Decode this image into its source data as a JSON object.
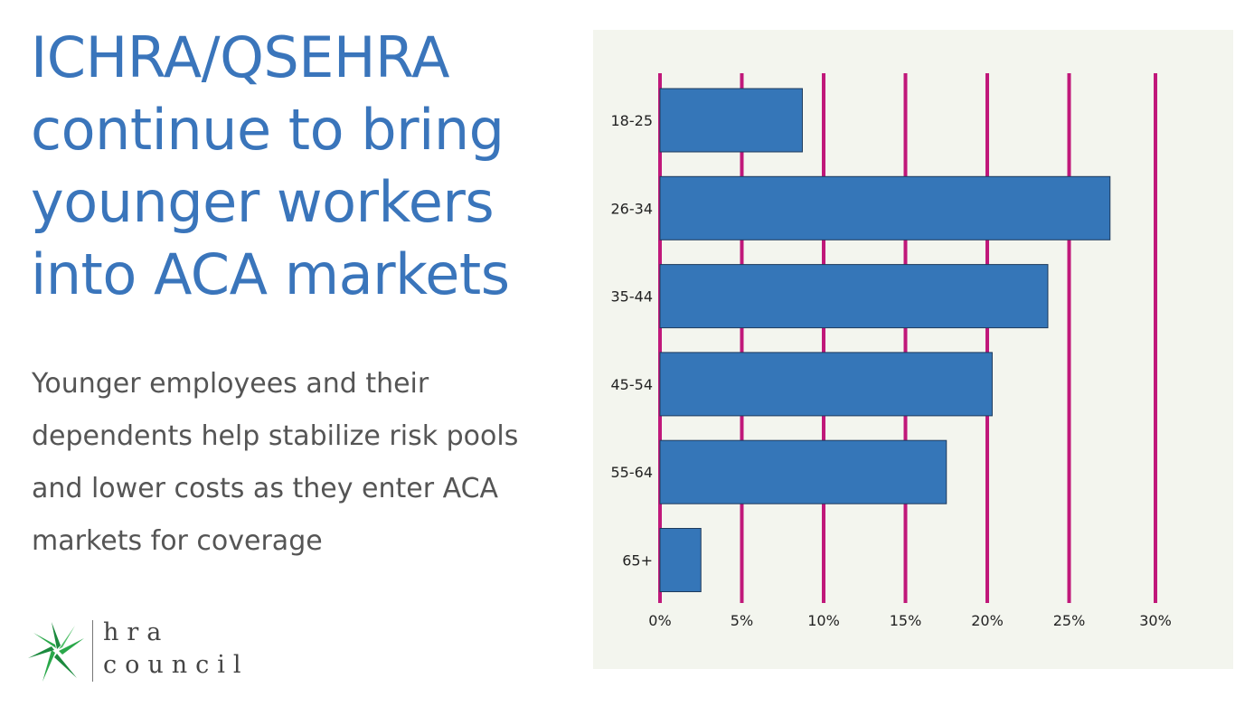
{
  "headline": {
    "lines": [
      "ICHRA/QSEHRA",
      "continue to bring",
      "younger workers",
      "into ACA markets"
    ]
  },
  "body": {
    "lines": [
      "Younger employees and their",
      "dependents help stabilize risk pools",
      "and lower costs as they enter ACA",
      "markets for coverage"
    ]
  },
  "logo": {
    "line1": "hra",
    "line2": "council",
    "icon": "star-burst-icon"
  },
  "colors": {
    "headline": "#3a75bb",
    "bar": "#3576b8",
    "gridline": "#c0187a",
    "panel_bg": "#f3f5ee"
  },
  "chart_data": {
    "type": "bar",
    "orientation": "horizontal",
    "categories": [
      "18-25",
      "26-34",
      "35-44",
      "45-54",
      "55-64",
      "65+"
    ],
    "values": [
      8.7,
      27.5,
      23.7,
      20.3,
      17.5,
      2.5
    ],
    "x_ticks": [
      "0%",
      "5%",
      "10%",
      "15%",
      "20%",
      "25%",
      "30%"
    ],
    "xlim": [
      0,
      30
    ],
    "title": "",
    "xlabel": "",
    "ylabel": "",
    "grid": true,
    "legend": "none"
  }
}
